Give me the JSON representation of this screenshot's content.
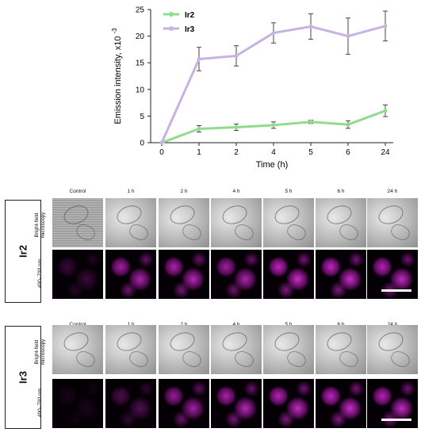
{
  "chart_data": {
    "type": "line",
    "categories": [
      "0",
      "1",
      "2",
      "4",
      "5",
      "6",
      "24"
    ],
    "series": [
      {
        "name": "Ir2",
        "color": "#8fdc8f",
        "values": [
          0,
          2.6,
          2.9,
          3.3,
          3.9,
          3.4,
          6.0
        ],
        "errors": [
          0,
          0.6,
          0.6,
          0.6,
          0.3,
          0.7,
          1.1
        ]
      },
      {
        "name": "Ir3",
        "color": "#c6b3e3",
        "values": [
          0,
          15.7,
          16.3,
          20.6,
          21.8,
          20.0,
          21.9
        ],
        "errors": [
          0,
          2.2,
          1.9,
          1.9,
          2.4,
          3.4,
          2.8
        ]
      }
    ],
    "xlabel": "Time (h)",
    "ylabel": "Emission intensity, x10",
    "ylabel_exponent": "-3",
    "ylim": [
      0,
      25
    ],
    "yticks": [
      "0",
      "5",
      "10",
      "15",
      "20",
      "25"
    ],
    "legend_position": "top-left",
    "grid": false
  },
  "panels": {
    "columns": [
      "Control",
      "1 h",
      "2 h",
      "4 h",
      "5 h",
      "6 h",
      "24 h"
    ],
    "row_labels": [
      "Bright-field microscopy",
      "490–790 nm"
    ],
    "groups": [
      "Ir2",
      "Ir3"
    ],
    "fluorescence_color": "#c020c0",
    "brightness": {
      "Ir2": [
        0.25,
        0.8,
        0.85,
        0.8,
        0.95,
        0.95,
        0.9
      ],
      "Ir3": [
        0.1,
        0.35,
        0.75,
        0.85,
        0.9,
        0.95,
        0.9
      ]
    }
  }
}
